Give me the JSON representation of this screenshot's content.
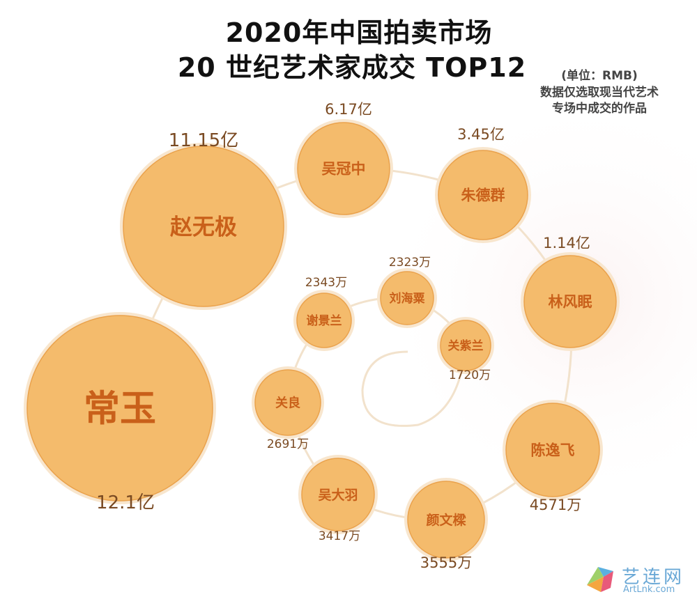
{
  "title_line1": "2020年中国拍卖市场",
  "title_line2": "20 世纪艺术家成交 TOP12",
  "note": {
    "unit": "(单位：RMB)",
    "line1": "数据仅选取现当代艺术",
    "line2": "专场中成交的作品"
  },
  "watermark": {
    "cn": "艺连网",
    "en": "ArtLnk.com"
  },
  "colors": {
    "bubble_fill": "#F4BB6C",
    "bubble_edge": "#EAA24C",
    "bubble_ring": "#F8E6CE",
    "name_text": "#C9601A",
    "value_text": "#7A4A22",
    "connector": "#F2E2CC"
  },
  "chart_data": {
    "type": "bubble",
    "title": "2020年中国拍卖市场 20 世纪艺术家成交 TOP12",
    "unit": "RMB",
    "series": [
      {
        "name": "常玉",
        "value": 1210000000,
        "label": "12.1亿"
      },
      {
        "name": "赵无极",
        "value": 1115000000,
        "label": "11.15亿"
      },
      {
        "name": "吴冠中",
        "value": 617000000,
        "label": "6.17亿"
      },
      {
        "name": "朱德群",
        "value": 345000000,
        "label": "3.45亿"
      },
      {
        "name": "林风眠",
        "value": 114000000,
        "label": "1.14亿"
      },
      {
        "name": "陈逸飞",
        "value": 45710000,
        "label": "4571万"
      },
      {
        "name": "颜文樑",
        "value": 35550000,
        "label": "3555万"
      },
      {
        "name": "吴大羽",
        "value": 34170000,
        "label": "3417万"
      },
      {
        "name": "关良",
        "value": 26910000,
        "label": "2691万"
      },
      {
        "name": "谢景兰",
        "value": 23430000,
        "label": "2343万"
      },
      {
        "name": "刘海粟",
        "value": 23230000,
        "label": "2323万"
      },
      {
        "name": "关紫兰",
        "value": 17200000,
        "label": "1720万"
      }
    ]
  }
}
